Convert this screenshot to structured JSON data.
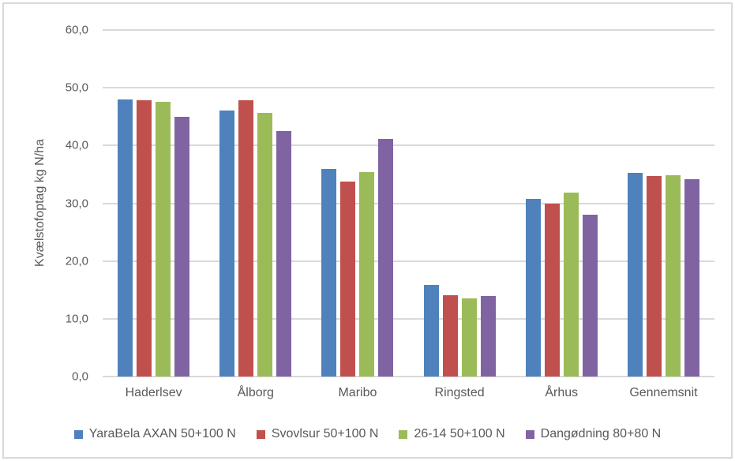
{
  "chart_data": {
    "type": "bar",
    "ylabel": "Kvælstofoptag kg N/ha",
    "xlabel": "",
    "ylim": [
      0,
      60
    ],
    "ytick_step": 10,
    "ytick_labels": [
      "0,0",
      "10,0",
      "20,0",
      "30,0",
      "40,0",
      "50,0",
      "60,0"
    ],
    "grid": true,
    "legend_position": "bottom",
    "categories": [
      "Haderlsev",
      "Ålborg",
      "Maribo",
      "Ringsted",
      "Århus",
      "Gennemsnit"
    ],
    "series": [
      {
        "name": "YaraBela AXAN 50+100 N",
        "color": "#4F81BD",
        "values": [
          48.0,
          46.1,
          35.9,
          15.8,
          30.7,
          35.3
        ]
      },
      {
        "name": "Svovlsur 50+100 N",
        "color": "#C0504D",
        "values": [
          47.9,
          47.8,
          33.8,
          14.1,
          30.0,
          34.7
        ]
      },
      {
        "name": "26-14 50+100 N",
        "color": "#9BBB59",
        "values": [
          47.6,
          45.6,
          35.4,
          13.5,
          31.8,
          34.8
        ]
      },
      {
        "name": "Dangødning 80+80 N",
        "color": "#8064A2",
        "values": [
          45.0,
          42.5,
          41.2,
          14.0,
          28.0,
          34.2
        ]
      }
    ],
    "styles": {
      "gridline_color": "#D9D9D9",
      "border_color": "#D9D9D9",
      "text_color": "#595959",
      "background": "#FFFFFF"
    }
  }
}
